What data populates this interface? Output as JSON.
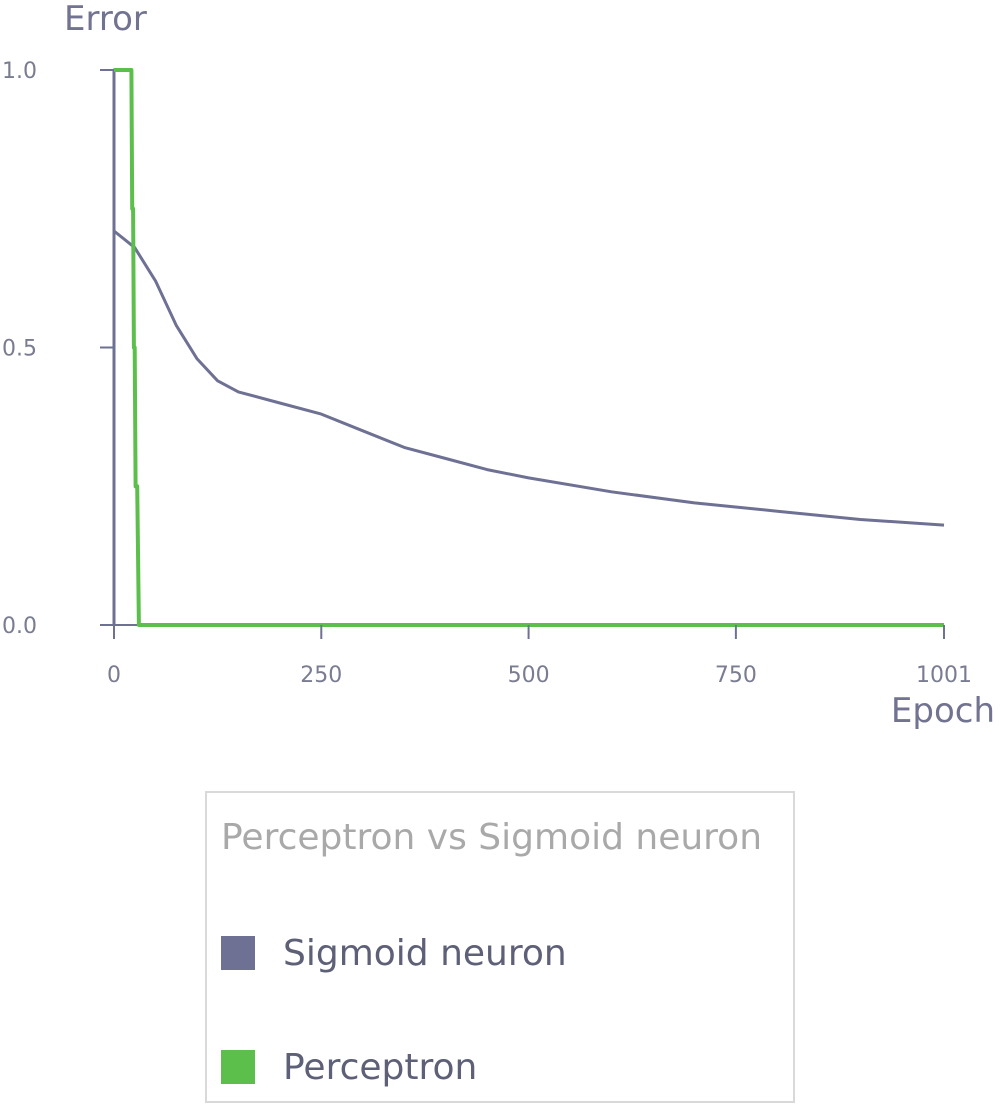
{
  "chart_data": {
    "type": "line",
    "title": "",
    "xlabel": "Epoch",
    "ylabel": "Error",
    "xlim": [
      0,
      1001
    ],
    "ylim": [
      0,
      1.0
    ],
    "x_ticks": [
      {
        "value": 0,
        "label": "0"
      },
      {
        "value": 250,
        "label": "250"
      },
      {
        "value": 500,
        "label": "500"
      },
      {
        "value": 750,
        "label": "750"
      },
      {
        "value": 1001,
        "label": "1001"
      }
    ],
    "y_ticks": [
      {
        "value": 0.0,
        "label": "0.0"
      },
      {
        "value": 0.5,
        "label": "0.5"
      },
      {
        "value": 1.0,
        "label": "1.0"
      }
    ],
    "grid": false,
    "legend": {
      "title": "Perceptron vs Sigmoid neuron",
      "placement": "bottom-center"
    },
    "series": [
      {
        "name": "Sigmoid neuron",
        "color": "#6e7193",
        "x": [
          0,
          0,
          0,
          25,
          50,
          75,
          100,
          125,
          150,
          200,
          250,
          300,
          350,
          400,
          450,
          500,
          600,
          700,
          800,
          900,
          1001
        ],
        "y": [
          0.0,
          1.0,
          0.71,
          0.68,
          0.62,
          0.54,
          0.48,
          0.44,
          0.42,
          0.4,
          0.38,
          0.35,
          0.32,
          0.3,
          0.28,
          0.265,
          0.24,
          0.22,
          0.205,
          0.19,
          0.18
        ]
      },
      {
        "name": "Perceptron",
        "color": "#5dbf4b",
        "x": [
          0,
          5,
          17,
          20,
          21,
          22,
          23,
          24,
          25,
          26,
          28,
          30,
          1001
        ],
        "y": [
          1.0,
          1.0,
          1.0,
          1.0,
          1.0,
          0.75,
          0.75,
          0.5,
          0.5,
          0.25,
          0.25,
          0.0,
          0.0
        ]
      }
    ]
  }
}
